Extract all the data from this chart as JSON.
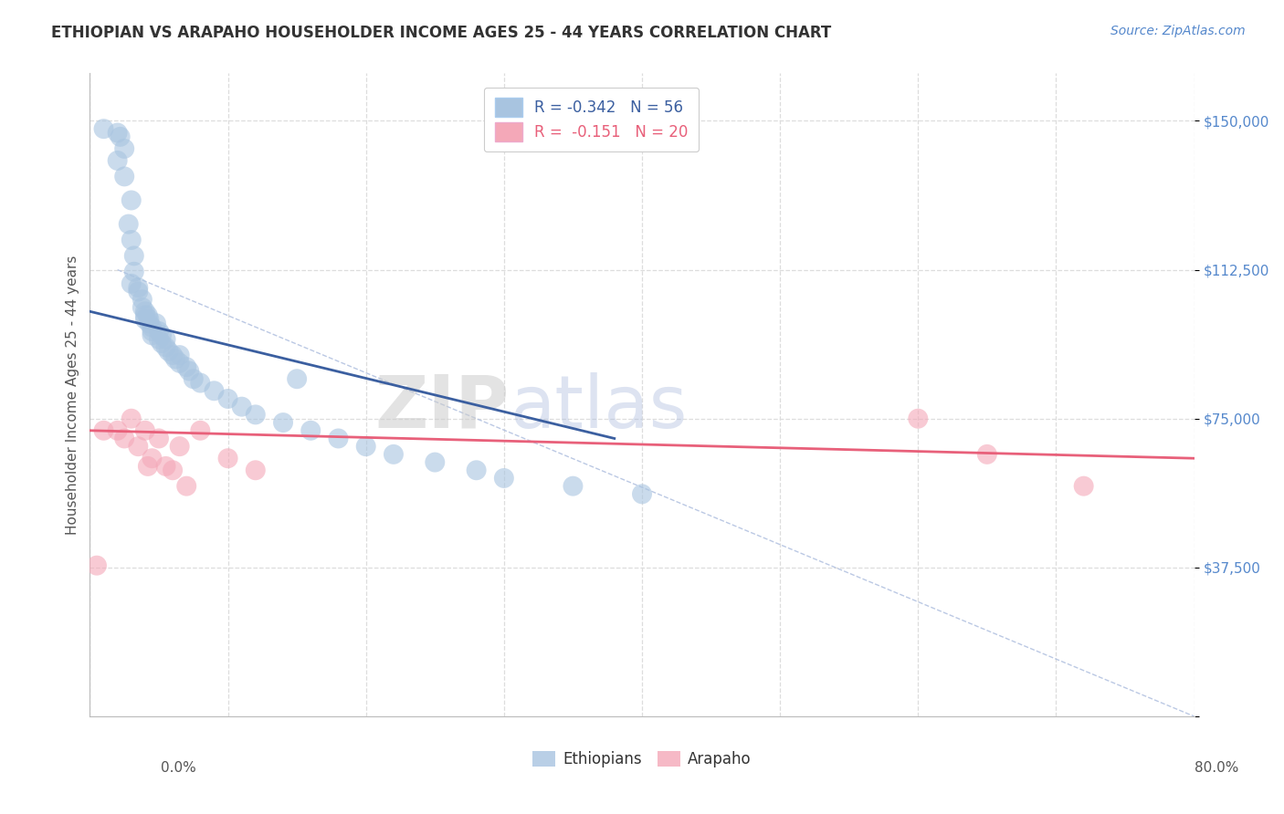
{
  "title": "ETHIOPIAN VS ARAPAHO HOUSEHOLDER INCOME AGES 25 - 44 YEARS CORRELATION CHART",
  "source": "Source: ZipAtlas.com",
  "ylabel": "Householder Income Ages 25 - 44 years",
  "yticks": [
    0,
    37500,
    75000,
    112500,
    150000
  ],
  "ytick_labels": [
    "",
    "$37,500",
    "$75,000",
    "$112,500",
    "$150,000"
  ],
  "xmin": 0.0,
  "xmax": 0.8,
  "ymin": 0,
  "ymax": 162000,
  "legend_r_blue": "-0.342",
  "legend_n_blue": "56",
  "legend_r_pink": "-0.151",
  "legend_n_pink": "20",
  "blue_color": "#A8C4E0",
  "pink_color": "#F4A8B8",
  "blue_line_color": "#3B5FA0",
  "pink_line_color": "#E8607A",
  "blue_scatter_x": [
    0.01,
    0.02,
    0.022,
    0.025,
    0.02,
    0.025,
    0.03,
    0.028,
    0.03,
    0.032,
    0.032,
    0.03,
    0.035,
    0.035,
    0.038,
    0.038,
    0.04,
    0.04,
    0.04,
    0.042,
    0.043,
    0.043,
    0.045,
    0.045,
    0.045,
    0.048,
    0.05,
    0.05,
    0.052,
    0.052,
    0.055,
    0.055,
    0.057,
    0.06,
    0.062,
    0.065,
    0.065,
    0.07,
    0.072,
    0.075,
    0.08,
    0.09,
    0.1,
    0.11,
    0.12,
    0.14,
    0.15,
    0.16,
    0.18,
    0.2,
    0.22,
    0.25,
    0.28,
    0.3,
    0.35,
    0.4
  ],
  "blue_scatter_y": [
    148000,
    147000,
    146000,
    143000,
    140000,
    136000,
    130000,
    124000,
    120000,
    116000,
    112000,
    109000,
    108000,
    107000,
    105000,
    103000,
    102000,
    101000,
    100000,
    101000,
    100000,
    99000,
    98000,
    97000,
    96000,
    99000,
    97000,
    95000,
    96000,
    94000,
    95000,
    93000,
    92000,
    91000,
    90000,
    91000,
    89000,
    88000,
    87000,
    85000,
    84000,
    82000,
    80000,
    78000,
    76000,
    74000,
    85000,
    72000,
    70000,
    68000,
    66000,
    64000,
    62000,
    60000,
    58000,
    56000
  ],
  "pink_scatter_x": [
    0.005,
    0.01,
    0.02,
    0.025,
    0.03,
    0.035,
    0.04,
    0.042,
    0.045,
    0.05,
    0.055,
    0.06,
    0.065,
    0.07,
    0.08,
    0.1,
    0.12,
    0.6,
    0.65,
    0.72
  ],
  "pink_scatter_y": [
    38000,
    72000,
    72000,
    70000,
    75000,
    68000,
    72000,
    63000,
    65000,
    70000,
    63000,
    62000,
    68000,
    58000,
    72000,
    65000,
    62000,
    75000,
    66000,
    58000
  ],
  "blue_line_x0": 0.0,
  "blue_line_y0": 102000,
  "blue_line_x1": 0.38,
  "blue_line_y1": 70000,
  "pink_line_x0": 0.0,
  "pink_line_y0": 72000,
  "pink_line_x1": 0.8,
  "pink_line_y1": 65000,
  "diag_line_x0": 0.02,
  "diag_line_y0": 112500,
  "diag_line_x1": 0.8,
  "diag_line_y1": 0,
  "background_color": "#FFFFFF",
  "plot_bg_color": "#FFFFFF",
  "grid_color": "#DDDDDD",
  "watermark_zip": "ZIP",
  "watermark_atlas": "atlas",
  "title_color": "#333333",
  "title_fontsize": 12,
  "source_color": "#5588CC",
  "source_fontsize": 10,
  "ylabel_color": "#555555",
  "ytick_color": "#5588CC",
  "xtick_label_left": "0.0%",
  "xtick_label_right": "80.0%"
}
